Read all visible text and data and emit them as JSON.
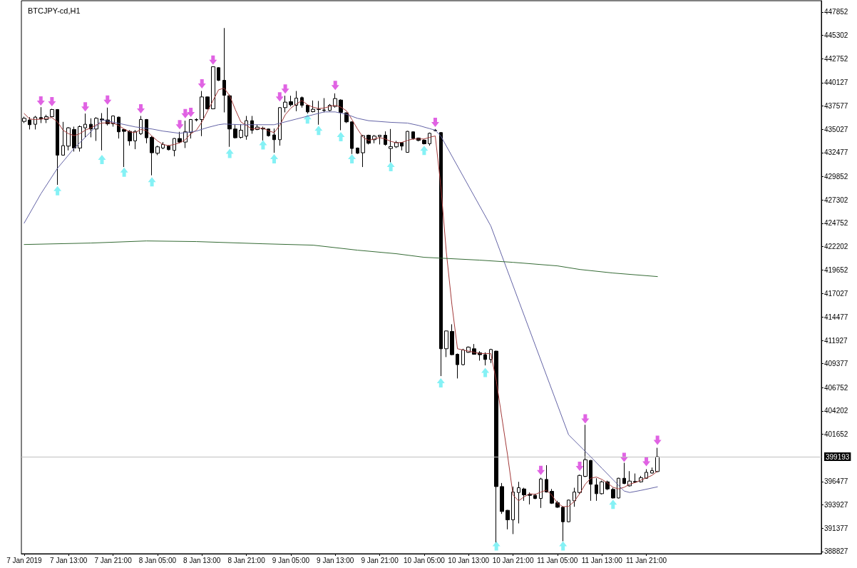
{
  "chart_data": {
    "type": "candlestick",
    "title": "BTCJPY-cd,H1",
    "color": "#000000",
    "x": [
      "2019-01-07T05:00",
      "2019-01-07T06:00",
      "2019-01-07T07:00",
      "2019-01-07T08:00",
      "2019-01-07T09:00",
      "2019-01-07T10:00",
      "2019-01-07T11:00",
      "2019-01-07T12:00",
      "2019-01-07T13:00",
      "2019-01-07T14:00",
      "2019-01-07T15:00",
      "2019-01-07T16:00",
      "2019-01-07T17:00",
      "2019-01-07T18:00",
      "2019-01-07T19:00",
      "2019-01-07T20:00",
      "2019-01-07T21:00",
      "2019-01-07T22:00",
      "2019-01-07T23:00",
      "2019-01-08T00:00",
      "2019-01-08T01:00",
      "2019-01-08T02:00",
      "2019-01-08T03:00",
      "2019-01-08T04:00",
      "2019-01-08T05:00",
      "2019-01-08T06:00",
      "2019-01-08T07:00",
      "2019-01-08T08:00",
      "2019-01-08T09:00",
      "2019-01-08T10:00",
      "2019-01-08T11:00",
      "2019-01-08T12:00",
      "2019-01-08T13:00",
      "2019-01-08T14:00",
      "2019-01-08T15:00",
      "2019-01-08T16:00",
      "2019-01-08T17:00",
      "2019-01-08T18:00",
      "2019-01-08T19:00",
      "2019-01-08T20:00",
      "2019-01-08T21:00",
      "2019-01-08T22:00",
      "2019-01-08T23:00",
      "2019-01-09T00:00",
      "2019-01-09T01:00",
      "2019-01-09T02:00",
      "2019-01-09T03:00",
      "2019-01-09T04:00",
      "2019-01-09T05:00",
      "2019-01-09T06:00",
      "2019-01-09T07:00",
      "2019-01-09T08:00",
      "2019-01-09T09:00",
      "2019-01-09T10:00",
      "2019-01-09T11:00",
      "2019-01-09T12:00",
      "2019-01-09T13:00",
      "2019-01-09T14:00",
      "2019-01-09T15:00",
      "2019-01-09T16:00",
      "2019-01-09T17:00",
      "2019-01-09T18:00",
      "2019-01-09T19:00",
      "2019-01-09T20:00",
      "2019-01-09T21:00",
      "2019-01-09T22:00",
      "2019-01-09T23:00",
      "2019-01-10T00:00",
      "2019-01-10T01:00",
      "2019-01-10T02:00",
      "2019-01-10T03:00",
      "2019-01-10T04:00",
      "2019-01-10T05:00",
      "2019-01-10T06:00",
      "2019-01-10T07:00",
      "2019-01-10T08:00",
      "2019-01-10T09:00",
      "2019-01-10T10:00",
      "2019-01-10T11:00",
      "2019-01-10T12:00",
      "2019-01-10T13:00",
      "2019-01-10T14:00",
      "2019-01-10T15:00",
      "2019-01-10T16:00",
      "2019-01-10T17:00",
      "2019-01-10T18:00",
      "2019-01-10T19:00",
      "2019-01-10T20:00",
      "2019-01-10T21:00",
      "2019-01-10T22:00",
      "2019-01-10T23:00",
      "2019-01-11T00:00",
      "2019-01-11T01:00",
      "2019-01-11T02:00",
      "2019-01-11T03:00",
      "2019-01-11T04:00",
      "2019-01-11T05:00",
      "2019-01-11T06:00",
      "2019-01-11T07:00",
      "2019-01-11T08:00",
      "2019-01-11T09:00",
      "2019-01-11T10:00",
      "2019-01-11T11:00",
      "2019-01-11T12:00",
      "2019-01-11T13:00",
      "2019-01-11T14:00",
      "2019-01-11T15:00",
      "2019-01-11T16:00",
      "2019-01-11T17:00",
      "2019-01-11T18:00",
      "2019-01-11T19:00",
      "2019-01-11T20:00",
      "2019-01-11T21:00",
      "2019-01-11T22:00",
      "2019-01-11T23:00"
    ],
    "ohlc": [
      [
        435890,
        436410,
        435710,
        436230
      ],
      [
        436050,
        436360,
        435010,
        435530
      ],
      [
        435580,
        436490,
        435010,
        436360
      ],
      [
        436310,
        437450,
        435710,
        436150
      ],
      [
        436100,
        436620,
        435710,
        436410
      ],
      [
        436410,
        437270,
        436360,
        437190
      ],
      [
        437190,
        437240,
        428950,
        432200
      ],
      [
        432200,
        435840,
        432150,
        433240
      ],
      [
        433190,
        435270,
        432720,
        435190
      ],
      [
        435010,
        435320,
        432590,
        432980
      ],
      [
        432980,
        435450,
        432590,
        435320
      ],
      [
        435190,
        436750,
        434150,
        435580
      ],
      [
        435580,
        436230,
        434150,
        435060
      ],
      [
        435060,
        436360,
        433760,
        436230
      ],
      [
        436150,
        436800,
        432720,
        436050
      ],
      [
        436050,
        437400,
        435450,
        435630
      ],
      [
        435630,
        436540,
        435320,
        436490
      ],
      [
        436360,
        436410,
        434020,
        434750
      ],
      [
        435010,
        435060,
        430900,
        434800
      ],
      [
        434800,
        434930,
        433240,
        433760
      ],
      [
        433760,
        434930,
        432850,
        434800
      ],
      [
        434540,
        436490,
        434410,
        436100
      ],
      [
        436100,
        436150,
        433500,
        434100
      ],
      [
        434150,
        434280,
        429990,
        432460
      ],
      [
        432410,
        433240,
        432200,
        433110
      ],
      [
        432980,
        433630,
        432850,
        433370
      ],
      [
        433190,
        433290,
        432720,
        432800
      ],
      [
        432720,
        434070,
        432070,
        434020
      ],
      [
        434020,
        434750,
        433500,
        433630
      ],
      [
        433630,
        435970,
        432980,
        434750
      ],
      [
        434670,
        436150,
        434020,
        436100
      ],
      [
        436050,
        436230,
        435890,
        436100
      ],
      [
        436100,
        439220,
        434280,
        438570
      ],
      [
        438570,
        438620,
        437190,
        437270
      ],
      [
        437270,
        441920,
        437220,
        441870
      ],
      [
        441770,
        441820,
        440310,
        440390
      ],
      [
        440390,
        446110,
        436880,
        438750
      ],
      [
        438700,
        438830,
        433110,
        435060
      ],
      [
        435060,
        435580,
        434020,
        434100
      ],
      [
        434150,
        435580,
        434020,
        434930
      ],
      [
        434280,
        436490,
        433890,
        435970
      ],
      [
        435970,
        436490,
        434540,
        434930
      ],
      [
        435010,
        435530,
        434930,
        435270
      ],
      [
        435160,
        435320,
        433810,
        435060
      ],
      [
        435060,
        435110,
        434230,
        434330
      ],
      [
        434410,
        435110,
        432460,
        433890
      ],
      [
        433890,
        437450,
        433240,
        437400
      ],
      [
        437400,
        438700,
        436880,
        438000
      ],
      [
        438050,
        438700,
        437530,
        437710
      ],
      [
        437660,
        439220,
        437010,
        438440
      ],
      [
        438490,
        438620,
        437400,
        437660
      ],
      [
        437660,
        437710,
        436750,
        436930
      ],
      [
        436960,
        438180,
        436880,
        437220
      ],
      [
        437190,
        438130,
        435530,
        437220
      ],
      [
        437140,
        438440,
        436880,
        437090
      ],
      [
        437090,
        437790,
        437010,
        437660
      ],
      [
        437530,
        438960,
        437400,
        438390
      ],
      [
        438230,
        438310,
        434930,
        436880
      ],
      [
        436830,
        436880,
        435710,
        435840
      ],
      [
        435840,
        435890,
        432330,
        432930
      ],
      [
        432980,
        433030,
        432330,
        432410
      ],
      [
        432460,
        434410,
        430900,
        434330
      ],
      [
        434380,
        434440,
        433370,
        433500
      ],
      [
        433890,
        434410,
        433500,
        434280
      ],
      [
        434230,
        434410,
        433370,
        434380
      ],
      [
        434380,
        434800,
        433240,
        433370
      ],
      [
        432930,
        435060,
        431420,
        433140
      ],
      [
        433110,
        433760,
        432980,
        433580
      ],
      [
        433580,
        433600,
        432720,
        433190
      ],
      [
        432510,
        434850,
        432460,
        434800
      ],
      [
        434750,
        434800,
        433890,
        434020
      ],
      [
        434070,
        434120,
        433710,
        433810
      ],
      [
        433840,
        433940,
        433370,
        433450
      ],
      [
        433450,
        434670,
        433240,
        434590
      ],
      [
        434880,
        435060,
        434800,
        434930
      ],
      [
        434670,
        434720,
        408020,
        411010
      ],
      [
        411010,
        413010,
        410100,
        412960
      ],
      [
        412910,
        413690,
        410310,
        410360
      ],
      [
        410410,
        410490,
        407760,
        409270
      ],
      [
        409270,
        411010,
        409190,
        410880
      ],
      [
        410620,
        411270,
        410570,
        411190
      ],
      [
        411010,
        411530,
        410360,
        410410
      ],
      [
        410570,
        410750,
        409710,
        410360
      ],
      [
        410360,
        410620,
        409190,
        409840
      ],
      [
        409840,
        411010,
        409450,
        410930
      ],
      [
        410750,
        410800,
        389820,
        395930
      ],
      [
        395930,
        396320,
        392940,
        393200
      ],
      [
        393330,
        393380,
        391250,
        392290
      ],
      [
        392290,
        395930,
        390730,
        395330
      ],
      [
        395280,
        396450,
        391900,
        395800
      ],
      [
        395670,
        395800,
        394370,
        395020
      ],
      [
        395070,
        395280,
        393980,
        394970
      ],
      [
        394970,
        395150,
        394550,
        394630
      ],
      [
        394630,
        396890,
        393590,
        396760
      ],
      [
        396710,
        398270,
        395280,
        395330
      ],
      [
        395410,
        395670,
        394030,
        394110
      ],
      [
        394160,
        394370,
        393590,
        393670
      ],
      [
        393670,
        393770,
        389950,
        392080
      ],
      [
        392080,
        394500,
        392030,
        394450
      ],
      [
        394370,
        395800,
        393720,
        395330
      ],
      [
        395280,
        397230,
        395150,
        397150
      ],
      [
        397050,
        402690,
        396970,
        398870
      ],
      [
        398790,
        398840,
        394370,
        396190
      ],
      [
        396110,
        396840,
        394370,
        395150
      ],
      [
        395150,
        396580,
        395070,
        396450
      ],
      [
        396450,
        396580,
        395540,
        395670
      ],
      [
        395620,
        395800,
        394630,
        394680
      ],
      [
        394680,
        396890,
        394630,
        396840
      ],
      [
        396840,
        398530,
        396190,
        396270
      ],
      [
        396010,
        397620,
        395930,
        396530
      ],
      [
        396480,
        397360,
        396320,
        396420
      ],
      [
        396450,
        397100,
        396370,
        396890
      ],
      [
        396840,
        397830,
        396790,
        397490
      ],
      [
        397410,
        398010,
        397360,
        397670
      ],
      [
        397570,
        400170,
        397490,
        399193
      ]
    ],
    "series": [
      {
        "type": "line",
        "color": "#a33a3a",
        "values": [
          436750,
          436150,
          436100,
          436150,
          436230,
          436310,
          435840,
          434930,
          434540,
          434330,
          434540,
          434930,
          435190,
          435530,
          435710,
          435740,
          435710,
          435450,
          435060,
          434750,
          434670,
          435010,
          434900,
          434280,
          433760,
          433370,
          433240,
          433370,
          433550,
          433890,
          434540,
          434930,
          435840,
          437010,
          438180,
          439350,
          439530,
          438700,
          437200,
          435840,
          435450,
          435060,
          435110,
          435160,
          434850,
          434670,
          435450,
          436620,
          437350,
          437790,
          438180,
          437710,
          437450,
          437300,
          437350,
          437530,
          437660,
          437450,
          437060,
          436100,
          435060,
          434150,
          433810,
          433970,
          434120,
          433970,
          433710,
          433550,
          433600,
          433810,
          433970,
          433970,
          433970,
          434150,
          434300,
          428820,
          421540,
          415820,
          411010,
          410880,
          410750,
          410620,
          410490,
          410490,
          410490,
          407450,
          403440,
          399440,
          395000,
          394370,
          394810,
          395150,
          395070,
          395330,
          395540,
          394970,
          394110,
          393720,
          393770,
          394290,
          395150,
          396190,
          396840,
          396970,
          396710,
          396320,
          395850,
          395670,
          395850,
          396190,
          396370,
          396630,
          396890,
          397150,
          397620
        ]
      },
      {
        "type": "line",
        "color": "#6464a6",
        "x": [
          "2019-01-07T05:00",
          "2019-01-07T08:00",
          "2019-01-07T11:00",
          "2019-01-07T14:00",
          "2019-01-07T17:00",
          "2019-01-07T19:00",
          "2019-01-07T22:00",
          "2019-01-08T01:00",
          "2019-01-08T04:00",
          "2019-01-08T06:00",
          "2019-01-08T09:00",
          "2019-01-08T12:00",
          "2019-01-08T14:00",
          "2019-01-08T16:00",
          "2019-01-08T17:00",
          "2019-01-08T20:00",
          "2019-01-08T23:00",
          "2019-01-09T02:00",
          "2019-01-09T04:00",
          "2019-01-09T06:00",
          "2019-01-09T09:00",
          "2019-01-09T11:00",
          "2019-01-09T13:00",
          "2019-01-09T15:00",
          "2019-01-09T17:00",
          "2019-01-09T19:00",
          "2019-01-09T23:00",
          "2019-01-10T02:00",
          "2019-01-10T04:00",
          "2019-01-10T06:00",
          "2019-01-10T07:00",
          "2019-01-10T08:00",
          "2019-01-10T17:00",
          "2019-01-11T07:00",
          "2019-01-11T11:00",
          "2019-01-11T13:00",
          "2019-01-11T15:00",
          "2019-01-11T17:00",
          "2019-01-11T18:00",
          "2019-01-11T20:00",
          "2019-01-11T23:00"
        ],
        "values": [
          424760,
          427960,
          430770,
          432950,
          434750,
          436070,
          435680,
          435290,
          435060,
          434830,
          434590,
          434830,
          435220,
          435530,
          435610,
          435530,
          435530,
          435530,
          435840,
          436150,
          436620,
          436930,
          436930,
          436670,
          436230,
          435970,
          435790,
          435710,
          435450,
          435100,
          434930,
          434280,
          424450,
          401600,
          399180,
          397930,
          396680,
          395440,
          395280,
          395510,
          395900
        ]
      },
      {
        "type": "line",
        "color": "#356b35",
        "x": [
          "2019-01-07T05:00",
          "2019-01-07T17:00",
          "2019-01-08T03:00",
          "2019-01-08T12:00",
          "2019-01-09T00:00",
          "2019-01-09T09:00",
          "2019-01-09T17:00",
          "2019-01-10T00:00",
          "2019-01-10T05:00",
          "2019-01-10T15:00",
          "2019-01-10T21:00",
          "2019-01-11T05:00",
          "2019-01-11T09:00",
          "2019-01-11T15:00",
          "2019-01-11T23:00"
        ],
        "values": [
          422420,
          422580,
          422810,
          422740,
          422500,
          422350,
          421800,
          421410,
          421020,
          420710,
          420470,
          420080,
          419690,
          419300,
          418910
        ]
      },
      {
        "type": "scatter",
        "color": "#d83cdc",
        "x": [
          "2019-01-07T08:00",
          "2019-01-07T10:00",
          "2019-01-07T16:00",
          "2019-01-07T20:00",
          "2019-01-08T02:00",
          "2019-01-08T09:00",
          "2019-01-08T10:00",
          "2019-01-08T11:00",
          "2019-01-08T13:00",
          "2019-01-08T15:00",
          "2019-01-09T03:00",
          "2019-01-09T04:00",
          "2019-01-09T13:00",
          "2019-01-10T07:00",
          "2019-01-11T02:00",
          "2019-01-11T09:00",
          "2019-01-11T10:00",
          "2019-01-11T17:00",
          "2019-01-11T21:00",
          "2019-01-11T23:00"
        ],
        "values": [
          438130,
          438050,
          437480,
          438230,
          437270,
          435530,
          436750,
          436880,
          440000,
          442600,
          438570,
          439430,
          439820,
          435790,
          397700,
          398140,
          403340,
          399130,
          398660,
          401000
        ]
      },
      {
        "type": "scatter",
        "color": "#66eef2",
        "x": [
          "2019-01-07T11:00",
          "2019-01-07T19:00",
          "2019-01-07T23:00",
          "2019-01-08T04:00",
          "2019-01-08T18:00",
          "2019-01-09T00:00",
          "2019-01-09T02:00",
          "2019-01-09T08:00",
          "2019-01-09T10:00",
          "2019-01-09T14:00",
          "2019-01-09T16:00",
          "2019-01-09T23:00",
          "2019-01-10T05:00",
          "2019-01-10T08:00",
          "2019-01-10T16:00",
          "2019-01-10T18:00",
          "2019-01-11T06:00",
          "2019-01-11T15:00"
        ],
        "values": [
          428300,
          431730,
          430330,
          429290,
          432380,
          433320,
          431810,
          436150,
          434900,
          434230,
          431810,
          430950,
          432720,
          407290,
          408410,
          389430,
          389430,
          393980
        ]
      }
    ],
    "xlim": [
      "2019-01-07T04:30",
      "2019-01-13T04:30"
    ],
    "xticks": [
      {
        "value": "2019-01-07T05:00",
        "label": "7 Jan 2019"
      },
      {
        "value": "2019-01-07T13:00",
        "label": "7 Jan 13:00"
      },
      {
        "value": "2019-01-07T21:00",
        "label": "7 Jan 21:00"
      },
      {
        "value": "2019-01-08T05:00",
        "label": "8 Jan 05:00"
      },
      {
        "value": "2019-01-08T13:00",
        "label": "8 Jan 13:00"
      },
      {
        "value": "2019-01-08T21:00",
        "label": "8 Jan 21:00"
      },
      {
        "value": "2019-01-09T05:00",
        "label": "9 Jan 05:00"
      },
      {
        "value": "2019-01-09T13:00",
        "label": "9 Jan 13:00"
      },
      {
        "value": "2019-01-09T21:00",
        "label": "9 Jan 21:00"
      },
      {
        "value": "2019-01-10T05:00",
        "label": "10 Jan 05:00"
      },
      {
        "value": "2019-01-10T13:00",
        "label": "10 Jan 13:00"
      },
      {
        "value": "2019-01-10T21:00",
        "label": "10 Jan 21:00"
      },
      {
        "value": "2019-01-11T05:00",
        "label": "11 Jan 05:00"
      },
      {
        "value": "2019-01-11T13:00",
        "label": "11 Jan 13:00"
      },
      {
        "value": "2019-01-11T21:00",
        "label": "11 Jan 21:00"
      }
    ],
    "ylim": [
      388580,
      449100
    ],
    "yticks": [
      447852,
      445302,
      442752,
      440127,
      437577,
      435027,
      432477,
      429852,
      427302,
      424752,
      422202,
      419652,
      417027,
      414477,
      411927,
      409377,
      406752,
      404202,
      401652,
      396477,
      393927,
      391377,
      388827
    ],
    "ref_lines": [
      {
        "axis": "y",
        "value": 399193,
        "label": "399193",
        "color": "#c0c0c0"
      }
    ]
  }
}
